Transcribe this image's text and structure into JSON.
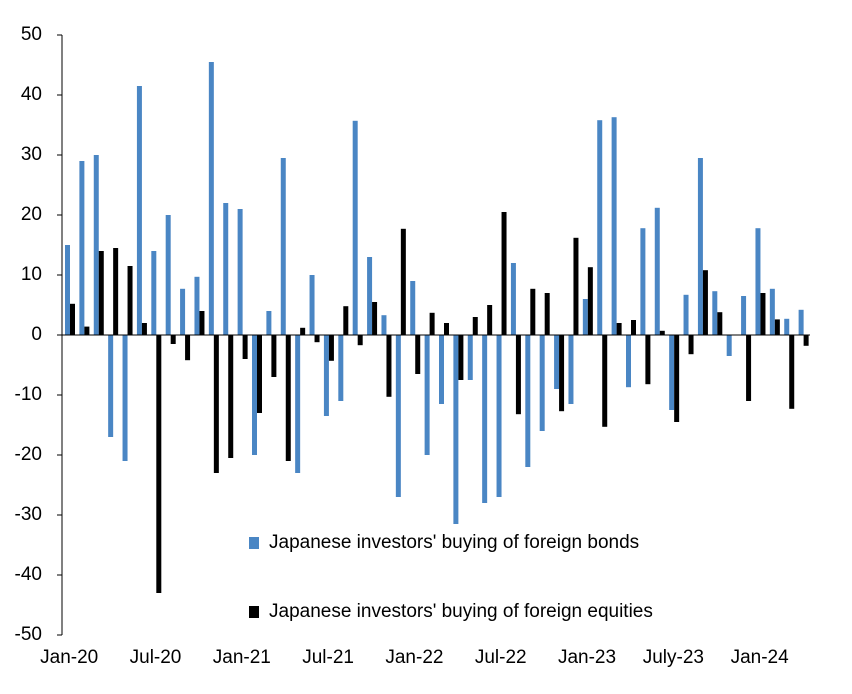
{
  "chart_data": {
    "type": "bar",
    "categories": [
      "Jan-20",
      null,
      null,
      null,
      null,
      null,
      "Jul-20",
      null,
      null,
      null,
      null,
      null,
      "Jan-21",
      null,
      null,
      null,
      null,
      null,
      "Jul-21",
      null,
      null,
      null,
      null,
      null,
      "Jan-22",
      null,
      null,
      null,
      null,
      null,
      "Jul-22",
      null,
      null,
      null,
      null,
      null,
      "Jan-23",
      null,
      null,
      null,
      null,
      null,
      "July-23",
      null,
      null,
      null,
      null,
      null,
      "Jan-24",
      null,
      null,
      null
    ],
    "series": [
      {
        "name": "Japanese investors' buying of foreign bonds",
        "color": "#4a86c4",
        "values": [
          15,
          29,
          30,
          -17,
          -21,
          41.5,
          14,
          20,
          7.7,
          9.7,
          45.5,
          22,
          21,
          -20,
          4,
          29.5,
          -23,
          10,
          -13.5,
          -11,
          35.7,
          13,
          3.3,
          -27,
          9,
          -20,
          -11.5,
          -31.5,
          -7.5,
          -28,
          -27,
          12,
          -22,
          -16,
          -9,
          -11.5,
          6,
          35.8,
          36.3,
          -8.7,
          17.8,
          21.2,
          -12.5,
          6.7,
          29.5,
          7.3,
          -3.5,
          6.5,
          17.8,
          7.7,
          2.7,
          4.2
        ]
      },
      {
        "name": "Japanese investors' buying of foreign equities",
        "color": "#000000",
        "values": [
          5.2,
          1.4,
          14,
          14.5,
          11.5,
          2,
          -43,
          -1.5,
          -4.2,
          4,
          -23,
          -20.5,
          -4,
          -13,
          -7,
          -21,
          1.2,
          -1.2,
          -4.3,
          4.8,
          -1.7,
          5.5,
          -10.3,
          17.7,
          -6.5,
          3.7,
          2,
          -7.5,
          3,
          5,
          20.5,
          -13.2,
          7.7,
          7,
          -12.7,
          16.2,
          11.3,
          -15.3,
          2,
          2.5,
          -8.2,
          0.7,
          -14.5,
          -3.2,
          10.8,
          3.8,
          0,
          -11,
          7,
          2.6,
          -12.3,
          -1.8
        ]
      }
    ],
    "ylim": [
      -50,
      50
    ],
    "yticks": [
      -50,
      -40,
      -30,
      -20,
      -10,
      0,
      10,
      20,
      30,
      40,
      50
    ]
  }
}
